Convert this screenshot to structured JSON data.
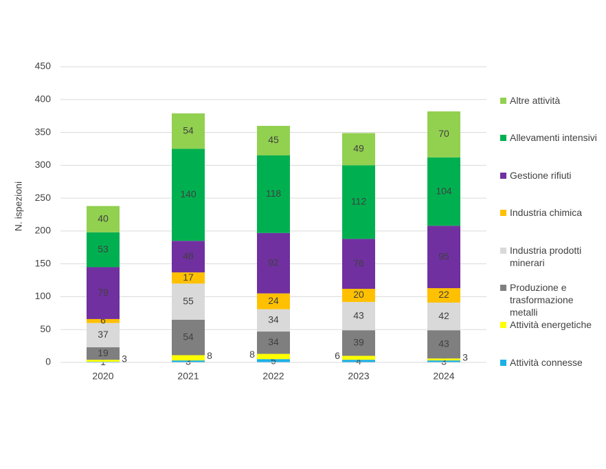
{
  "chart_data": {
    "type": "stacked_bar",
    "y_label": "N. ispezioni",
    "categories": [
      "2020",
      "2021",
      "2022",
      "2023",
      "2024"
    ],
    "series": [
      {
        "name": "Attività connesse",
        "color": "#1cb0e6",
        "values": [
          1,
          3,
          5,
          4,
          3
        ]
      },
      {
        "name": "Attività energetiche",
        "color": "#ffff00",
        "values": [
          3,
          8,
          8,
          6,
          3
        ]
      },
      {
        "name": "Produzione e trasformazione metalli",
        "color": "#7f7f7f",
        "values": [
          19,
          54,
          34,
          39,
          43
        ]
      },
      {
        "name": "Industria prodotti minerari",
        "color": "#d9d9d9",
        "values": [
          37,
          55,
          34,
          43,
          42
        ]
      },
      {
        "name": "Industria chimica",
        "color": "#ffc000",
        "values": [
          6,
          17,
          24,
          20,
          22
        ]
      },
      {
        "name": "Gestione rifiuti",
        "color": "#7030a0",
        "values": [
          79,
          48,
          92,
          76,
          95
        ]
      },
      {
        "name": "Allevamenti intensivi",
        "color": "#00b050",
        "values": [
          53,
          140,
          118,
          112,
          104
        ]
      },
      {
        "name": "Altre attività",
        "color": "#92d050",
        "values": [
          40,
          54,
          45,
          49,
          70
        ]
      }
    ],
    "ylim": [
      0,
      450
    ],
    "yticks": [
      0,
      50,
      100,
      150,
      200,
      250,
      300,
      350,
      400,
      450
    ],
    "grid": true
  }
}
